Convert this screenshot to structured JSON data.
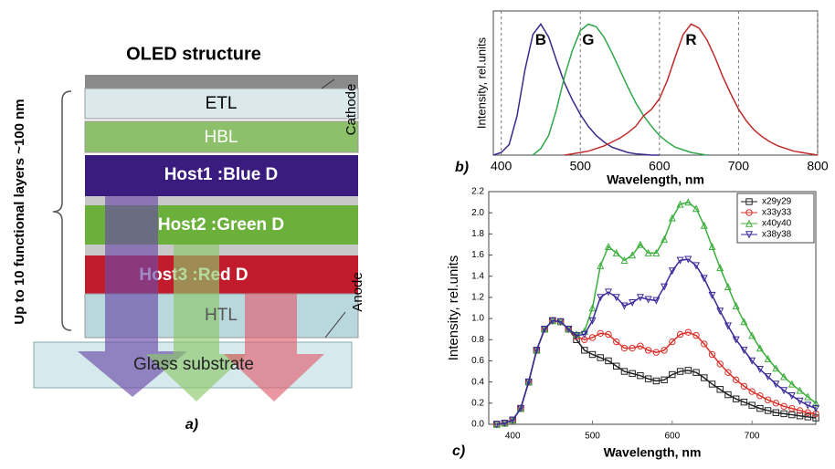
{
  "figure_a": {
    "title": "OLED structure",
    "layers": [
      "ETL",
      "HBL",
      "Host1 :Blue D",
      "Host2 :Green D",
      "Host3 :Red D",
      "HTL"
    ],
    "substrate": "Glass substrate",
    "cathode_label": "Cathode",
    "anode_label": "Anode",
    "thickness_label": "Up to 10 functional layers ~100 nm",
    "panel_label": "a)"
  },
  "chart_data": [
    {
      "type": "line",
      "panel_label": "b)",
      "xlabel": "Wavelength, nm",
      "ylabel": "Intensity, rel.units",
      "grid": true,
      "legend": false,
      "series_labels_at_peak": true,
      "x": [
        390,
        400,
        410,
        420,
        430,
        440,
        450,
        460,
        470,
        480,
        490,
        500,
        510,
        520,
        530,
        540,
        550,
        560,
        570,
        580,
        590,
        600,
        610,
        620,
        630,
        640,
        650,
        660,
        670,
        680,
        690,
        700,
        710,
        720,
        730,
        740,
        750,
        760,
        770,
        780,
        790,
        800
      ],
      "xlim": [
        390,
        800
      ],
      "xticks": [
        400,
        500,
        600,
        700,
        800
      ],
      "ylim": [
        0,
        1.1
      ],
      "series": [
        {
          "name": "B",
          "color": "#3b2a8c",
          "values": [
            0,
            0.02,
            0.08,
            0.3,
            0.65,
            0.92,
            1.0,
            0.9,
            0.72,
            0.55,
            0.42,
            0.31,
            0.22,
            0.15,
            0.1,
            0.06,
            0.04,
            0.02,
            0.01,
            0.005,
            0,
            0,
            null,
            null,
            null,
            null,
            null,
            null,
            null,
            null,
            null,
            null,
            null,
            null,
            null,
            null,
            null,
            null,
            null,
            null,
            null,
            null
          ]
        },
        {
          "name": "G",
          "color": "#2fa84a",
          "values": [
            null,
            null,
            null,
            null,
            null,
            0,
            0.05,
            0.15,
            0.35,
            0.6,
            0.8,
            0.95,
            1.0,
            0.98,
            0.9,
            0.78,
            0.65,
            0.52,
            0.4,
            0.3,
            0.22,
            0.15,
            0.1,
            0.06,
            0.04,
            0.02,
            0.01,
            0,
            null,
            null,
            null,
            null,
            null,
            null,
            null,
            null,
            null,
            null,
            null,
            null,
            null,
            null
          ]
        },
        {
          "name": "R",
          "color": "#c02a2a",
          "values": [
            null,
            null,
            null,
            null,
            null,
            null,
            null,
            null,
            null,
            0,
            0.01,
            0.02,
            0.03,
            0.05,
            0.07,
            0.1,
            0.13,
            0.17,
            0.22,
            0.3,
            0.35,
            0.43,
            0.57,
            0.75,
            0.92,
            1.0,
            0.97,
            0.88,
            0.75,
            0.6,
            0.47,
            0.35,
            0.26,
            0.19,
            0.14,
            0.1,
            0.07,
            0.05,
            0.03,
            0.02,
            0.01,
            0
          ]
        }
      ]
    },
    {
      "type": "line",
      "panel_label": "c)",
      "xlabel": "Wavelength, nm",
      "ylabel": "Intensity, rel.units",
      "grid": false,
      "legend": "upper right",
      "x": [
        380,
        390,
        400,
        410,
        420,
        430,
        440,
        450,
        460,
        470,
        480,
        490,
        500,
        510,
        520,
        530,
        540,
        550,
        560,
        570,
        580,
        590,
        600,
        610,
        620,
        630,
        640,
        650,
        660,
        670,
        680,
        690,
        700,
        710,
        720,
        730,
        740,
        750,
        760,
        770,
        780
      ],
      "xlim": [
        370,
        780
      ],
      "xticks": [
        400,
        500,
        600,
        700
      ],
      "ylim": [
        0,
        2.2
      ],
      "yticks": [
        {
          "value": 0,
          "label": "0.0"
        },
        0.2,
        0.4,
        0.6,
        0.8,
        {
          "value": 1,
          "label": "1.0"
        },
        1.2,
        1.4,
        1.6,
        1.8,
        {
          "value": 2,
          "label": "2.0"
        },
        2.2
      ],
      "series": [
        {
          "name": "x29y29",
          "color": "#222222",
          "marker": "square",
          "values": [
            0,
            0.01,
            0.04,
            0.15,
            0.4,
            0.7,
            0.9,
            0.98,
            0.97,
            0.9,
            0.8,
            0.7,
            0.66,
            0.63,
            0.6,
            0.55,
            0.5,
            0.48,
            0.46,
            0.43,
            0.41,
            0.42,
            0.47,
            0.5,
            0.51,
            0.49,
            0.44,
            0.38,
            0.33,
            0.28,
            0.24,
            0.21,
            0.18,
            0.15,
            0.13,
            0.11,
            0.1,
            0.09,
            0.08,
            0.07,
            0.06
          ]
        },
        {
          "name": "x33y33",
          "color": "#d9302a",
          "marker": "circle",
          "values": [
            0,
            0.01,
            0.04,
            0.15,
            0.4,
            0.7,
            0.9,
            0.98,
            0.97,
            0.9,
            0.83,
            0.8,
            0.82,
            0.86,
            0.85,
            0.78,
            0.72,
            0.72,
            0.74,
            0.7,
            0.68,
            0.7,
            0.78,
            0.85,
            0.87,
            0.84,
            0.76,
            0.66,
            0.57,
            0.49,
            0.42,
            0.36,
            0.31,
            0.27,
            0.23,
            0.2,
            0.17,
            0.15,
            0.13,
            0.11,
            0.1
          ]
        },
        {
          "name": "x40y40",
          "color": "#3cae3c",
          "marker": "triangle",
          "values": [
            0,
            0.01,
            0.04,
            0.15,
            0.4,
            0.7,
            0.9,
            0.98,
            0.97,
            0.9,
            0.85,
            0.88,
            1.1,
            1.5,
            1.68,
            1.62,
            1.55,
            1.6,
            1.7,
            1.62,
            1.62,
            1.75,
            1.95,
            2.08,
            2.1,
            2.04,
            1.88,
            1.68,
            1.48,
            1.3,
            1.12,
            0.97,
            0.84,
            0.72,
            0.62,
            0.53,
            0.45,
            0.38,
            0.32,
            0.26,
            0.2
          ]
        },
        {
          "name": "x38y38",
          "color": "#3a2a9a",
          "marker": "down-triangle",
          "values": [
            0,
            0.01,
            0.04,
            0.15,
            0.4,
            0.7,
            0.9,
            0.98,
            0.97,
            0.9,
            0.84,
            0.85,
            0.98,
            1.2,
            1.25,
            1.2,
            1.12,
            1.15,
            1.2,
            1.18,
            1.17,
            1.3,
            1.45,
            1.55,
            1.56,
            1.5,
            1.38,
            1.22,
            1.07,
            0.93,
            0.8,
            0.7,
            0.6,
            0.52,
            0.45,
            0.38,
            0.32,
            0.27,
            0.22,
            0.18,
            0.15
          ]
        }
      ]
    }
  ]
}
